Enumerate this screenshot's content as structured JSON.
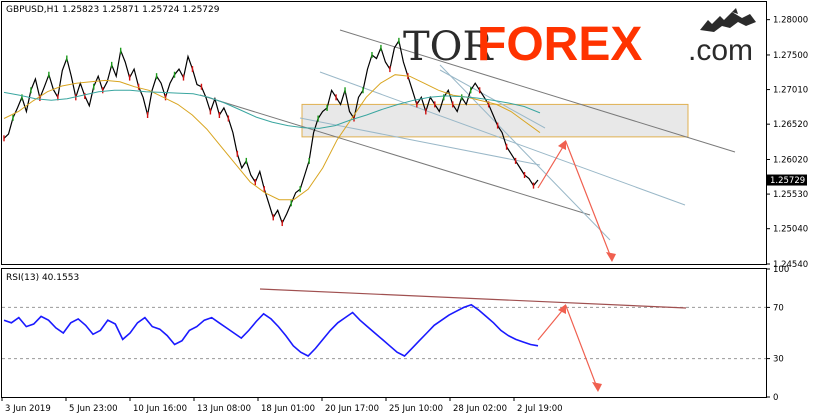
{
  "watermark": {
    "tor": "TOR",
    "forex": "FOREX",
    "dotcom": ".com",
    "icon": "bull-bear-icon",
    "tor_color": "#2b2b2b",
    "forex_color": "#ff3300"
  },
  "chart_data": [
    {
      "type": "line",
      "title": "GBPUSD,H1  1.25823  1.25871  1.25724  1.25729",
      "ylim": [
        1.2454,
        1.2825
      ],
      "y_ticks": [
        "1.28000",
        "1.27500",
        "1.27010",
        "1.26520",
        "1.26020",
        "1.25530",
        "1.25040",
        "1.24540"
      ],
      "y_tick_values": [
        1.28,
        1.275,
        1.2701,
        1.2652,
        1.2602,
        1.2553,
        1.2504,
        1.2454
      ],
      "current_price_label": "1.25729",
      "current_price": 1.25729,
      "grid": false,
      "series": [
        {
          "kind": "price",
          "color": "#000000",
          "values": [
            1.2632,
            1.2638,
            1.2661,
            1.2675,
            1.269,
            1.267,
            1.27,
            1.2716,
            1.2689,
            1.2705,
            1.2722,
            1.2701,
            1.269,
            1.2728,
            1.2745,
            1.272,
            1.269,
            1.271,
            1.2692,
            1.2678,
            1.2705,
            1.272,
            1.27,
            1.2712,
            1.2736,
            1.272,
            1.2756,
            1.274,
            1.2718,
            1.273,
            1.2705,
            1.269,
            1.2665,
            1.27,
            1.272,
            1.271,
            1.269,
            1.271,
            1.2722,
            1.273,
            1.2718,
            1.2748,
            1.273,
            1.2708,
            1.2705,
            1.269,
            1.267,
            1.2688,
            1.2665,
            1.2675,
            1.266,
            1.264,
            1.261,
            1.259,
            1.26,
            1.258,
            1.257,
            1.2585,
            1.256,
            1.254,
            1.252,
            1.253,
            1.2512,
            1.2525,
            1.254,
            1.2555,
            1.256,
            1.258,
            1.26,
            1.264,
            1.266,
            1.267,
            1.2675,
            1.27,
            1.269,
            1.268,
            1.27,
            1.267,
            1.266,
            1.269,
            1.27,
            1.273,
            1.275,
            1.2745,
            1.276,
            1.274,
            1.273,
            1.276,
            1.277,
            1.274,
            1.272,
            1.27,
            1.268,
            1.269,
            1.267,
            1.269,
            1.268,
            1.267,
            1.269,
            1.27,
            1.268,
            1.267,
            1.269,
            1.268,
            1.27,
            1.271,
            1.27,
            1.269,
            1.268,
            1.2665,
            1.265,
            1.264,
            1.262,
            1.261,
            1.26,
            1.259,
            1.258,
            1.2575,
            1.2565,
            1.2573
          ]
        },
        {
          "kind": "ma-fast",
          "color": "#d9a520",
          "values": [
            1.266,
            1.267,
            1.2685,
            1.2698,
            1.2706,
            1.271,
            1.2712,
            1.2714,
            1.2712,
            1.2705,
            1.27,
            1.269,
            1.268,
            1.2665,
            1.2645,
            1.262,
            1.2595,
            1.257,
            1.2555,
            1.2545,
            1.2545,
            1.256,
            1.259,
            1.263,
            1.266,
            1.269,
            1.271,
            1.2722,
            1.272,
            1.271,
            1.27,
            1.2693,
            1.269,
            1.2685,
            1.268,
            1.267,
            1.2655,
            1.264
          ]
        },
        {
          "kind": "ma-slow",
          "color": "#3aa6a0",
          "values": [
            1.2697,
            1.2693,
            1.2688,
            1.2686,
            1.2688,
            1.2693,
            1.2698,
            1.27,
            1.27,
            1.2698,
            1.2697,
            1.2696,
            1.2695,
            1.269,
            1.2682,
            1.2672,
            1.2662,
            1.2655,
            1.265,
            1.2647,
            1.2646,
            1.265,
            1.2658,
            1.2665,
            1.2673,
            1.268,
            1.2686,
            1.269,
            1.2692,
            1.2691,
            1.2689,
            1.2686,
            1.2682,
            1.2677,
            1.2668
          ]
        }
      ]
    },
    {
      "type": "line",
      "title": "RSI(13) 40.1553",
      "ylim": [
        0,
        100
      ],
      "y_ticks": [
        "100",
        "70",
        "30",
        "0"
      ],
      "y_tick_values": [
        100,
        70,
        30,
        0
      ],
      "levels": [
        70,
        30
      ],
      "grid": false,
      "series": [
        {
          "kind": "rsi",
          "color": "#1a1aff",
          "values": [
            60,
            58,
            62,
            55,
            57,
            63,
            60,
            54,
            50,
            58,
            61,
            56,
            49,
            52,
            60,
            57,
            45,
            50,
            58,
            62,
            55,
            53,
            48,
            41,
            44,
            52,
            55,
            60,
            62,
            58,
            54,
            50,
            46,
            52,
            59,
            65,
            61,
            55,
            48,
            40,
            35,
            32,
            38,
            45,
            52,
            58,
            62,
            66,
            60,
            55,
            50,
            45,
            40,
            35,
            32,
            38,
            44,
            50,
            56,
            60,
            64,
            67,
            70,
            72,
            68,
            63,
            58,
            52,
            48,
            45,
            43,
            41,
            40
          ]
        }
      ]
    }
  ],
  "x_axis": {
    "labels": [
      "3 Jun 2019",
      "5 Jun 23:00",
      "10 Jun 16:00",
      "13 Jun 08:00",
      "18 Jun 01:00",
      "20 Jun 17:00",
      "25 Jun 10:00",
      "28 Jun 02:00",
      "2 Jul 19:00"
    ]
  },
  "annotations": {
    "channel_color": "#7a7a7a",
    "zone_color": "#d8d8d8",
    "zone_border": "#e0b050",
    "arrow_color": "#f06050",
    "rsi_trend_color": "#a05050"
  }
}
